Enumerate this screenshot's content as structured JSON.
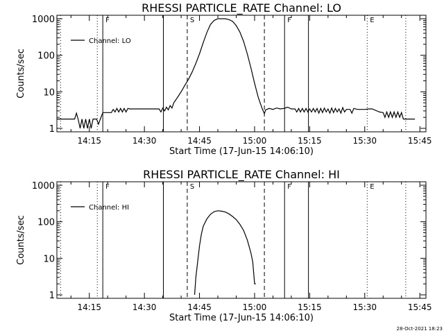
{
  "stamp": "28-Oct-2021 18:23",
  "chart_data": [
    {
      "type": "line",
      "title": "RHESSI PARTICLE_RATE Channel: LO",
      "xlabel": "Start Time (17-Jun-15 14:06:10)",
      "ylabel": "Counts/sec",
      "y_scale": "log",
      "xlim": [
        "14:06:10",
        "15:46:40"
      ],
      "ylim": [
        1,
        1000
      ],
      "x_ticks": [
        "14:15",
        "14:30",
        "14:45",
        "15:00",
        "15:15",
        "15:30",
        "15:45"
      ],
      "y_ticks": [
        "1",
        "10",
        "100",
        "1000"
      ],
      "legend": {
        "position": "top-left",
        "entries": [
          "Channel: LO"
        ]
      },
      "markers": [
        {
          "time": "14:07:10",
          "style": "dotted",
          "label": ""
        },
        {
          "time": "14:17:10",
          "style": "dotted",
          "label": ""
        },
        {
          "time": "14:18:40",
          "style": "solid",
          "label": "F"
        },
        {
          "time": "14:35:10",
          "style": "solid",
          "label": ""
        },
        {
          "time": "14:41:40",
          "style": "dashed",
          "label": "S"
        },
        {
          "time": "15:02:40",
          "style": "dashed",
          "label": ""
        },
        {
          "time": "15:08:10",
          "style": "solid",
          "label": "F"
        },
        {
          "time": "15:14:40",
          "style": "solid",
          "label": ""
        },
        {
          "time": "15:30:40",
          "style": "dotted",
          "label": "E"
        },
        {
          "time": "15:41:10",
          "style": "dotted",
          "label": ""
        }
      ],
      "series": [
        {
          "name": "Channel: LO",
          "points": [
            [
              "14:06:10",
              1.8
            ],
            [
              "14:11:00",
              1.8
            ],
            [
              "14:11:30",
              2.6
            ],
            [
              "14:12:00",
              1.7
            ],
            [
              "14:12:30",
              1.0
            ],
            [
              "14:13:00",
              1.8
            ],
            [
              "14:13:30",
              1.0
            ],
            [
              "14:14:00",
              1.8
            ],
            [
              "14:14:30",
              1.0
            ],
            [
              "14:15:00",
              1.8
            ],
            [
              "14:15:30",
              1.0
            ],
            [
              "14:16:00",
              1.8
            ],
            [
              "14:17:00",
              1.8
            ],
            [
              "14:17:30",
              1.3
            ],
            [
              "14:18:00",
              1.8
            ],
            [
              "14:18:40",
              2.7
            ],
            [
              "14:21:00",
              2.7
            ],
            [
              "14:21:30",
              3.3
            ],
            [
              "14:22:00",
              2.8
            ],
            [
              "14:22:30",
              3.5
            ],
            [
              "14:23:00",
              2.8
            ],
            [
              "14:23:30",
              3.5
            ],
            [
              "14:24:00",
              2.8
            ],
            [
              "14:24:30",
              3.5
            ],
            [
              "14:25:00",
              2.8
            ],
            [
              "14:25:30",
              3.5
            ],
            [
              "14:26:00",
              3.4
            ],
            [
              "14:34:00",
              3.4
            ],
            [
              "14:34:30",
              2.8
            ],
            [
              "14:35:00",
              3.6
            ],
            [
              "14:35:30",
              3.0
            ],
            [
              "14:36:00",
              3.8
            ],
            [
              "14:36:30",
              3.2
            ],
            [
              "14:37:00",
              4.2
            ],
            [
              "14:37:30",
              3.6
            ],
            [
              "14:38:00",
              5.0
            ],
            [
              "14:39:00",
              7.0
            ],
            [
              "14:40:00",
              10.0
            ],
            [
              "14:41:00",
              15.0
            ],
            [
              "14:42:00",
              22.0
            ],
            [
              "14:43:00",
              35.0
            ],
            [
              "14:44:00",
              60.0
            ],
            [
              "14:45:00",
              110.0
            ],
            [
              "14:46:00",
              220.0
            ],
            [
              "14:47:00",
              420.0
            ],
            [
              "14:48:00",
              700.0
            ],
            [
              "14:49:00",
              900.0
            ],
            [
              "14:50:00",
              1000.0
            ],
            [
              "14:51:00",
              1000.0
            ],
            [
              "14:52:00",
              1000.0
            ],
            [
              "14:53:00",
              950.0
            ],
            [
              "14:54:00",
              850.0
            ],
            [
              "14:55:00",
              650.0
            ],
            [
              "14:56:00",
              430.0
            ],
            [
              "14:57:00",
              240.0
            ],
            [
              "14:58:00",
              110.0
            ],
            [
              "14:59:00",
              45.0
            ],
            [
              "15:00:00",
              17.0
            ],
            [
              "15:01:00",
              7.0
            ],
            [
              "15:02:00",
              3.6
            ],
            [
              "15:02:40",
              2.5
            ],
            [
              "15:03:00",
              3.2
            ],
            [
              "15:04:00",
              3.5
            ],
            [
              "15:05:00",
              3.3
            ],
            [
              "15:06:00",
              3.6
            ],
            [
              "15:07:00",
              3.4
            ],
            [
              "15:08:00",
              3.5
            ],
            [
              "15:09:00",
              3.8
            ],
            [
              "15:10:00",
              3.4
            ],
            [
              "15:11:00",
              3.4
            ],
            [
              "15:11:30",
              2.8
            ],
            [
              "15:12:00",
              3.5
            ],
            [
              "15:12:30",
              2.8
            ],
            [
              "15:13:00",
              3.5
            ],
            [
              "15:13:30",
              2.8
            ],
            [
              "15:14:00",
              3.5
            ],
            [
              "15:14:30",
              2.8
            ],
            [
              "15:15:00",
              3.4
            ],
            [
              "15:15:30",
              2.8
            ],
            [
              "15:16:00",
              3.5
            ],
            [
              "15:16:30",
              2.8
            ],
            [
              "15:17:00",
              3.5
            ],
            [
              "15:17:30",
              2.6
            ],
            [
              "15:18:00",
              3.5
            ],
            [
              "15:18:30",
              2.7
            ],
            [
              "15:19:00",
              3.6
            ],
            [
              "15:19:30",
              2.8
            ],
            [
              "15:20:00",
              3.4
            ],
            [
              "15:20:30",
              2.6
            ],
            [
              "15:21:00",
              3.6
            ],
            [
              "15:21:30",
              2.7
            ],
            [
              "15:22:00",
              3.5
            ],
            [
              "15:22:30",
              2.8
            ],
            [
              "15:23:00",
              3.4
            ],
            [
              "15:23:30",
              2.6
            ],
            [
              "15:24:00",
              3.7
            ],
            [
              "15:24:30",
              2.8
            ],
            [
              "15:25:00",
              3.3
            ],
            [
              "15:26:00",
              3.3
            ],
            [
              "15:26:30",
              2.6
            ],
            [
              "15:27:00",
              3.5
            ],
            [
              "15:28:00",
              3.3
            ],
            [
              "15:30:00",
              3.3
            ],
            [
              "15:31:00",
              3.4
            ],
            [
              "15:32:00",
              3.4
            ],
            [
              "15:34:00",
              2.8
            ],
            [
              "15:35:00",
              2.7
            ],
            [
              "15:35:30",
              2.0
            ],
            [
              "15:36:00",
              2.8
            ],
            [
              "15:36:30",
              2.0
            ],
            [
              "15:37:00",
              2.8
            ],
            [
              "15:37:30",
              2.0
            ],
            [
              "15:38:00",
              2.8
            ],
            [
              "15:38:30",
              2.0
            ],
            [
              "15:39:00",
              2.8
            ],
            [
              "15:39:30",
              2.0
            ],
            [
              "15:40:00",
              2.7
            ],
            [
              "15:40:30",
              1.8
            ],
            [
              "15:43:40",
              1.8
            ]
          ]
        }
      ]
    },
    {
      "type": "line",
      "title": "RHESSI PARTICLE_RATE Channel: HI",
      "xlabel": "Start Time (17-Jun-15 14:06:10)",
      "ylabel": "Counts/sec",
      "y_scale": "log",
      "xlim": [
        "14:06:10",
        "15:46:40"
      ],
      "ylim": [
        1,
        1000
      ],
      "x_ticks": [
        "14:15",
        "14:30",
        "14:45",
        "15:00",
        "15:15",
        "15:30",
        "15:45"
      ],
      "y_ticks": [
        "1",
        "10",
        "100",
        "1000"
      ],
      "legend": {
        "position": "top-left",
        "entries": [
          "Channel: HI"
        ]
      },
      "markers": [
        {
          "time": "14:07:10",
          "style": "dotted",
          "label": ""
        },
        {
          "time": "14:17:10",
          "style": "dotted",
          "label": ""
        },
        {
          "time": "14:18:40",
          "style": "solid",
          "label": "F"
        },
        {
          "time": "14:35:10",
          "style": "solid",
          "label": ""
        },
        {
          "time": "14:41:40",
          "style": "dashed",
          "label": "S"
        },
        {
          "time": "15:02:40",
          "style": "dashed",
          "label": ""
        },
        {
          "time": "15:08:10",
          "style": "solid",
          "label": "F"
        },
        {
          "time": "15:14:40",
          "style": "solid",
          "label": ""
        },
        {
          "time": "15:30:40",
          "style": "dotted",
          "label": "E"
        },
        {
          "time": "15:41:10",
          "style": "dotted",
          "label": ""
        }
      ],
      "series": [
        {
          "name": "Channel: HI",
          "points": [
            [
              "14:43:40",
              1.0
            ],
            [
              "14:44:00",
              3.0
            ],
            [
              "14:44:30",
              8.0
            ],
            [
              "14:45:00",
              22.0
            ],
            [
              "14:45:30",
              45.0
            ],
            [
              "14:46:00",
              75.0
            ],
            [
              "14:47:00",
              120.0
            ],
            [
              "14:48:00",
              160.0
            ],
            [
              "14:49:00",
              190.0
            ],
            [
              "14:50:00",
              200.0
            ],
            [
              "14:51:00",
              195.0
            ],
            [
              "14:52:00",
              185.0
            ],
            [
              "14:53:00",
              165.0
            ],
            [
              "14:54:00",
              140.0
            ],
            [
              "14:55:00",
              115.0
            ],
            [
              "14:56:00",
              85.0
            ],
            [
              "14:57:00",
              58.0
            ],
            [
              "14:58:00",
              32.0
            ],
            [
              "14:59:00",
              14.0
            ],
            [
              "14:59:30",
              8.0
            ],
            [
              "15:00:00",
              2.0
            ],
            [
              "15:00:20",
              2.0
            ]
          ]
        }
      ]
    }
  ]
}
